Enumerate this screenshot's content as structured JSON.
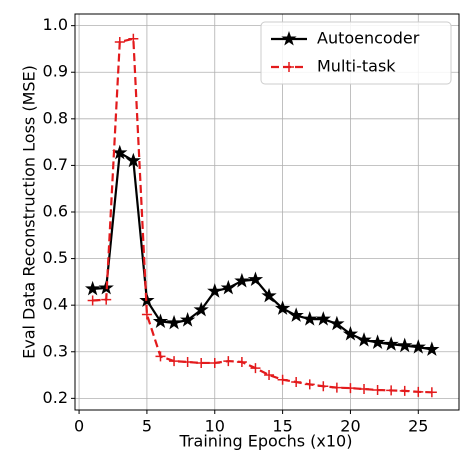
{
  "chart_data": {
    "type": "line",
    "xlabel": "Training Epochs (x10)",
    "ylabel": "Eval Data Reconstruction Loss (MSE)",
    "x": [
      1,
      2,
      3,
      4,
      5,
      6,
      7,
      8,
      9,
      10,
      11,
      12,
      13,
      14,
      15,
      16,
      17,
      18,
      19,
      20,
      21,
      22,
      23,
      24,
      25,
      26
    ],
    "series": [
      {
        "name": "Autoencoder",
        "color": "#000000",
        "marker": "star",
        "dash": false,
        "values": [
          0.435,
          0.437,
          0.727,
          0.71,
          0.41,
          0.365,
          0.362,
          0.368,
          0.39,
          0.43,
          0.437,
          0.452,
          0.455,
          0.42,
          0.393,
          0.378,
          0.37,
          0.37,
          0.36,
          0.338,
          0.325,
          0.32,
          0.316,
          0.313,
          0.31,
          0.305
        ]
      },
      {
        "name": "Multi-task",
        "color": "#e31a1c",
        "marker": "plus",
        "dash": true,
        "values": [
          0.41,
          0.412,
          0.965,
          0.972,
          0.38,
          0.29,
          0.28,
          0.278,
          0.276,
          0.276,
          0.28,
          0.278,
          0.265,
          0.25,
          0.24,
          0.235,
          0.23,
          0.226,
          0.223,
          0.222,
          0.22,
          0.218,
          0.217,
          0.216,
          0.214,
          0.213
        ]
      }
    ],
    "xlim": [
      -0.3,
      28
    ],
    "xticks": [
      0,
      5,
      10,
      15,
      20,
      25
    ],
    "ylim": [
      0.175,
      1.025
    ],
    "yticks": [
      0.2,
      0.3,
      0.4,
      0.5,
      0.6,
      0.7,
      0.8,
      0.9,
      {
        "value": 1,
        "label": "1.0"
      }
    ],
    "grid": true,
    "legend": "upper right"
  }
}
